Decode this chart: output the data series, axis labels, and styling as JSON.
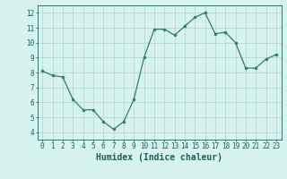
{
  "x": [
    0,
    1,
    2,
    3,
    4,
    5,
    6,
    7,
    8,
    9,
    10,
    11,
    12,
    13,
    14,
    15,
    16,
    17,
    18,
    19,
    20,
    21,
    22,
    23
  ],
  "y": [
    8.1,
    7.8,
    7.7,
    6.2,
    5.5,
    5.5,
    4.7,
    4.2,
    4.7,
    6.2,
    9.0,
    10.9,
    10.9,
    10.5,
    11.1,
    11.7,
    12.0,
    10.6,
    10.7,
    10.0,
    8.3,
    8.3,
    8.9,
    9.2
  ],
  "line_color": "#2e7d6e",
  "marker": "o",
  "marker_size": 2.0,
  "bg_color": "#d6f3ef",
  "grid_color": "#b8d8d4",
  "xlabel": "Humidex (Indice chaleur)",
  "ylim": [
    3.5,
    12.5
  ],
  "xlim": [
    -0.5,
    23.5
  ],
  "yticks": [
    4,
    5,
    6,
    7,
    8,
    9,
    10,
    11,
    12
  ],
  "xticks": [
    0,
    1,
    2,
    3,
    4,
    5,
    6,
    7,
    8,
    9,
    10,
    11,
    12,
    13,
    14,
    15,
    16,
    17,
    18,
    19,
    20,
    21,
    22,
    23
  ],
  "tick_label_fontsize": 5.5,
  "xlabel_fontsize": 7.0,
  "label_color": "#1a5f5a",
  "linewidth": 0.9
}
